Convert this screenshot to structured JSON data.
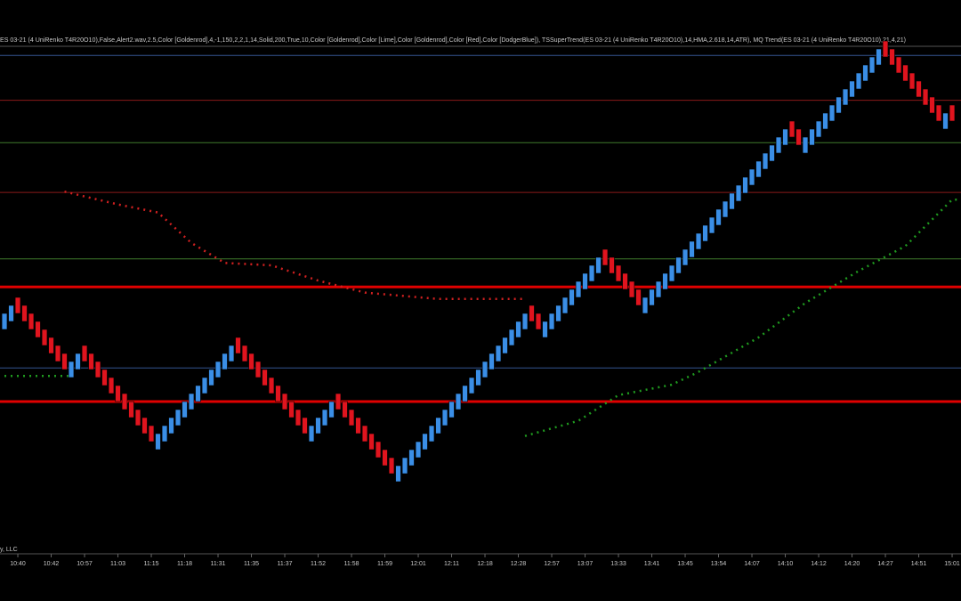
{
  "chart_data": {
    "type": "renko",
    "title": "ES 03-21 (4 UniRenko T4R20O10),False,Alert2.wav,2.5,Color [Goldenrod],4,-1,150,2,2,1,14,Solid,200,True,10,Color [Goldenrod],Color [Lime],Color [Goldenrod],Color [Red],Color [DodgerBlue]), TSSuperTrend(ES 03-21 (4 UniRenko T4R20O10),14,HMA,2.618,14,ATR), MQ Trend(ES 03-21 (4 UniRenko T4R20O10),21,4,21)",
    "footer": "y, LLC",
    "up_color": "#3a8ee6",
    "down_color": "#e0141e",
    "open": [
      30,
      31,
      34,
      33,
      32,
      31,
      30,
      29,
      28,
      27,
      24,
      25,
      28,
      27,
      26,
      25,
      24,
      23,
      22,
      21,
      20,
      19,
      18,
      15,
      16,
      17,
      18,
      19,
      20,
      21,
      22,
      23,
      24,
      25,
      26,
      29,
      28,
      27,
      26,
      25,
      24,
      23,
      22,
      21,
      20,
      19,
      16,
      17,
      18,
      19,
      22,
      21,
      20,
      19,
      18,
      17,
      16,
      15,
      14,
      11,
      12,
      13,
      14,
      15,
      16,
      17,
      18,
      19,
      20,
      21,
      22,
      23,
      24,
      25,
      26,
      27,
      28,
      29,
      30,
      33,
      32,
      29,
      30,
      31,
      32,
      33,
      34,
      35,
      36,
      37,
      40,
      39,
      38,
      37,
      36,
      35,
      32,
      33,
      34,
      35,
      36,
      37,
      38,
      39,
      40,
      41,
      42,
      43,
      44,
      45,
      46,
      47,
      48,
      49,
      50,
      51,
      52,
      53,
      56,
      55,
      52,
      53,
      54,
      55,
      56,
      57,
      58,
      59,
      60,
      61,
      62,
      63,
      66,
      65,
      64,
      63,
      62,
      61,
      60,
      59,
      58,
      55,
      58
    ],
    "close": [
      32,
      33,
      32,
      31,
      30,
      29,
      28,
      27,
      26,
      25,
      26,
      27,
      26,
      25,
      24,
      23,
      22,
      21,
      20,
      19,
      18,
      17,
      16,
      17,
      18,
      19,
      20,
      21,
      22,
      23,
      24,
      25,
      26,
      27,
      28,
      27,
      26,
      25,
      24,
      23,
      22,
      21,
      20,
      19,
      18,
      17,
      18,
      19,
      20,
      21,
      20,
      19,
      18,
      17,
      16,
      15,
      14,
      13,
      12,
      13,
      14,
      15,
      16,
      17,
      18,
      19,
      20,
      21,
      22,
      23,
      24,
      25,
      26,
      27,
      28,
      29,
      30,
      31,
      32,
      31,
      30,
      31,
      32,
      33,
      34,
      35,
      36,
      37,
      38,
      39,
      38,
      37,
      36,
      35,
      34,
      33,
      34,
      35,
      36,
      37,
      38,
      39,
      40,
      41,
      42,
      43,
      44,
      45,
      46,
      47,
      48,
      49,
      50,
      51,
      52,
      53,
      54,
      55,
      54,
      53,
      54,
      55,
      56,
      57,
      58,
      59,
      60,
      61,
      62,
      63,
      64,
      65,
      64,
      63,
      62,
      61,
      60,
      59,
      58,
      57,
      56,
      57,
      56
    ],
    "xlim": [
      -0.67,
      143.33
    ],
    "ylim": [
      0,
      68
    ],
    "xticks": [
      {
        "value": 2,
        "label": "10:40"
      },
      {
        "value": 7,
        "label": "10:42"
      },
      {
        "value": 12,
        "label": "10:57"
      },
      {
        "value": 17,
        "label": "11:03"
      },
      {
        "value": 22,
        "label": "11:15"
      },
      {
        "value": 27,
        "label": "11:18"
      },
      {
        "value": 32,
        "label": "11:31"
      },
      {
        "value": 37,
        "label": "11:35"
      },
      {
        "value": 42,
        "label": "11:37"
      },
      {
        "value": 47,
        "label": "11:52"
      },
      {
        "value": 52,
        "label": "11:58"
      },
      {
        "value": 57,
        "label": "11:59"
      },
      {
        "value": 62,
        "label": "12:01"
      },
      {
        "value": 67,
        "label": "12:11"
      },
      {
        "value": 72,
        "label": "12:18"
      },
      {
        "value": 77,
        "label": "12:28"
      },
      {
        "value": 82,
        "label": "12:57"
      },
      {
        "value": 87,
        "label": "13:07"
      },
      {
        "value": 92,
        "label": "13:33"
      },
      {
        "value": 97,
        "label": "13:41"
      },
      {
        "value": 102,
        "label": "13:45"
      },
      {
        "value": 107,
        "label": "13:54"
      },
      {
        "value": 112,
        "label": "14:07"
      },
      {
        "value": 117,
        "label": "14:10"
      },
      {
        "value": 122,
        "label": "14:12"
      },
      {
        "value": 127,
        "label": "14:20"
      },
      {
        "value": 132,
        "label": "14:27"
      },
      {
        "value": 137,
        "label": "14:51"
      },
      {
        "value": 142,
        "label": "15:01"
      }
    ],
    "levels": [
      {
        "value": 64.2,
        "color": "#34548f",
        "width": 1
      },
      {
        "value": 58.6,
        "color": "#8a1a1a",
        "width": 1
      },
      {
        "value": 53.3,
        "color": "#3f7a2c",
        "width": 1
      },
      {
        "value": 47.1,
        "color": "#8a1a1a",
        "width": 1
      },
      {
        "value": 38.8,
        "color": "#3f7a2c",
        "width": 1
      },
      {
        "value": 35.3,
        "color": "#e00000",
        "width": 3
      },
      {
        "value": 25.2,
        "color": "#34548f",
        "width": 1
      },
      {
        "value": 21,
        "color": "#e00000",
        "width": 3
      }
    ],
    "lines": [
      {
        "color": "#d02020",
        "x": [
          9,
          17,
          23,
          28,
          33,
          40,
          47,
          54,
          65,
          78
        ],
        "values": [
          47.2,
          45.6,
          44.6,
          40.8,
          38.3,
          38,
          36.1,
          34.6,
          33.8,
          33.8
        ]
      },
      {
        "color": "#1f9a1f",
        "x": [
          0,
          10
        ],
        "values": [
          24.2,
          24.2
        ]
      },
      {
        "color": "#1f9a1f",
        "x": [
          78,
          86,
          92,
          100,
          104,
          113,
          120,
          128,
          135,
          142,
          143
        ],
        "values": [
          16.7,
          18.6,
          21.8,
          23.1,
          24.7,
          29,
          33.3,
          37.3,
          40.4,
          46.2,
          46.2
        ]
      }
    ]
  }
}
